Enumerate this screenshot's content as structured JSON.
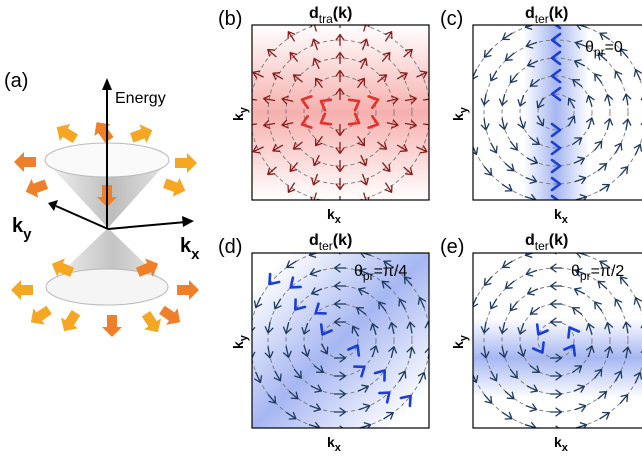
{
  "panel_a": {
    "letter": "(a)",
    "axis_energy": "Energy",
    "axis_ky": "k",
    "axis_ky_sub": "y",
    "axis_kx": "k",
    "axis_kx_sub": "x",
    "arrow_color": "#f5a623"
  },
  "panels": {
    "b": {
      "letter": "(b)",
      "title_main": "d",
      "title_sub": "tra",
      "title_arg": "(k)",
      "theta_label": "",
      "xlabel": "k",
      "xlabel_sub": "x",
      "ylabel": "k",
      "ylabel_sub": "y",
      "arrow_color": "#8b1a1a",
      "highlight_color": "#e8302a"
    },
    "c": {
      "letter": "(c)",
      "title_main": "d",
      "title_sub": "ter",
      "title_arg": "(k)",
      "theta_main": "θ",
      "theta_sub": "pr",
      "theta_val": "=0",
      "xlabel": "k",
      "xlabel_sub": "x",
      "ylabel": "k",
      "ylabel_sub": "y",
      "arrow_color": "#1f3a60",
      "highlight_color": "#1a3fd6"
    },
    "d": {
      "letter": "(d)",
      "title_main": "d",
      "title_sub": "ter",
      "title_arg": "(k)",
      "theta_main": "θ",
      "theta_sub": "pr",
      "theta_val": "=π/4",
      "xlabel": "k",
      "xlabel_sub": "x",
      "ylabel": "k",
      "ylabel_sub": "y",
      "arrow_color": "#1f3a60",
      "highlight_color": "#1a3fd6"
    },
    "e": {
      "letter": "(e)",
      "title_main": "d",
      "title_sub": "ter",
      "title_arg": "(k)",
      "theta_main": "θ",
      "theta_sub": "pr",
      "theta_val": "=π/2",
      "xlabel": "k",
      "xlabel_sub": "x",
      "ylabel": "k",
      "ylabel_sub": "y",
      "arrow_color": "#1f3a60",
      "highlight_color": "#1a3fd6"
    }
  }
}
